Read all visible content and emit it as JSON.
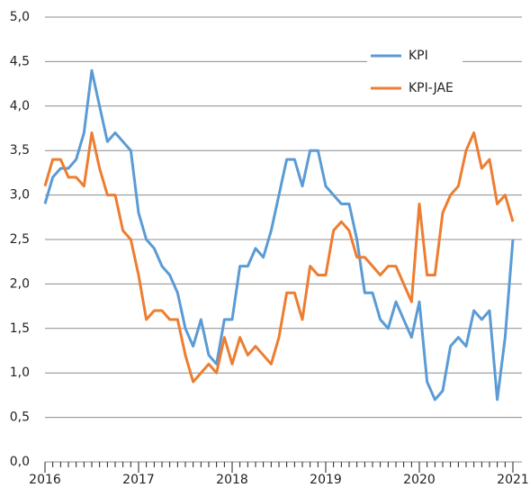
{
  "chart_data": {
    "type": "line",
    "x": [
      2016,
      2016.083,
      2016.167,
      2016.25,
      2016.333,
      2016.417,
      2016.5,
      2016.583,
      2016.667,
      2016.75,
      2016.833,
      2016.917,
      2017,
      2017.083,
      2017.167,
      2017.25,
      2017.333,
      2017.417,
      2017.5,
      2017.583,
      2017.667,
      2017.75,
      2017.833,
      2017.917,
      2018,
      2018.083,
      2018.167,
      2018.25,
      2018.333,
      2018.417,
      2018.5,
      2018.583,
      2018.667,
      2018.75,
      2018.833,
      2018.917,
      2019,
      2019.083,
      2019.167,
      2019.25,
      2019.333,
      2019.417,
      2019.5,
      2019.583,
      2019.667,
      2019.75,
      2019.833,
      2019.917,
      2020,
      2020.083,
      2020.167,
      2020.25,
      2020.333,
      2020.417,
      2020.5,
      2020.583,
      2020.667,
      2020.75,
      2020.833,
      2020.917,
      2021
    ],
    "series": [
      {
        "name": "KPI",
        "color": "#5b9bd5",
        "values": [
          2.9,
          3.2,
          3.3,
          3.3,
          3.4,
          3.7,
          4.4,
          4.0,
          3.6,
          3.7,
          3.6,
          3.5,
          2.8,
          2.5,
          2.4,
          2.2,
          2.1,
          1.9,
          1.5,
          1.3,
          1.6,
          1.2,
          1.1,
          1.6,
          1.6,
          2.2,
          2.2,
          2.4,
          2.3,
          2.6,
          3.0,
          3.4,
          3.4,
          3.1,
          3.5,
          3.5,
          3.1,
          3.0,
          2.9,
          2.9,
          2.5,
          1.9,
          1.9,
          1.6,
          1.5,
          1.8,
          1.6,
          1.4,
          1.8,
          0.9,
          0.7,
          0.8,
          1.3,
          1.4,
          1.3,
          1.7,
          1.6,
          1.7,
          0.7,
          1.4,
          2.5
        ]
      },
      {
        "name": "KPI-JAE",
        "color": "#ed7d31",
        "values": [
          3.1,
          3.4,
          3.4,
          3.2,
          3.2,
          3.1,
          3.7,
          3.3,
          3.0,
          3.0,
          2.6,
          2.5,
          2.1,
          1.6,
          1.7,
          1.7,
          1.6,
          1.6,
          1.2,
          0.9,
          1.0,
          1.1,
          1.0,
          1.4,
          1.1,
          1.4,
          1.2,
          1.3,
          1.2,
          1.1,
          1.4,
          1.9,
          1.9,
          1.6,
          2.2,
          2.1,
          2.1,
          2.6,
          2.7,
          2.6,
          2.3,
          2.3,
          2.2,
          2.1,
          2.2,
          2.2,
          2.0,
          1.8,
          2.9,
          2.1,
          2.1,
          2.8,
          3.0,
          3.1,
          3.5,
          3.7,
          3.3,
          3.4,
          2.9,
          3.0,
          2.7
        ]
      }
    ],
    "xlim": [
      2016,
      2021
    ],
    "xticks": [
      2016,
      2017,
      2018,
      2019,
      2020,
      2021
    ],
    "ylim": [
      0,
      5
    ],
    "yticks": [
      {
        "value": 0,
        "label": "0,0"
      },
      {
        "value": 0.5,
        "label": "0,5"
      },
      {
        "value": 1,
        "label": "1,0"
      },
      {
        "value": 1.5,
        "label": "1,5"
      },
      {
        "value": 2,
        "label": "2,0"
      },
      {
        "value": 2.5,
        "label": "2,5"
      },
      {
        "value": 3,
        "label": "3,0"
      },
      {
        "value": 3.5,
        "label": "3,5"
      },
      {
        "value": 4,
        "label": "4,0"
      },
      {
        "value": 4.5,
        "label": "4,5"
      },
      {
        "value": 5,
        "label": "5,0"
      }
    ],
    "grid": true,
    "legend": "upper right"
  }
}
